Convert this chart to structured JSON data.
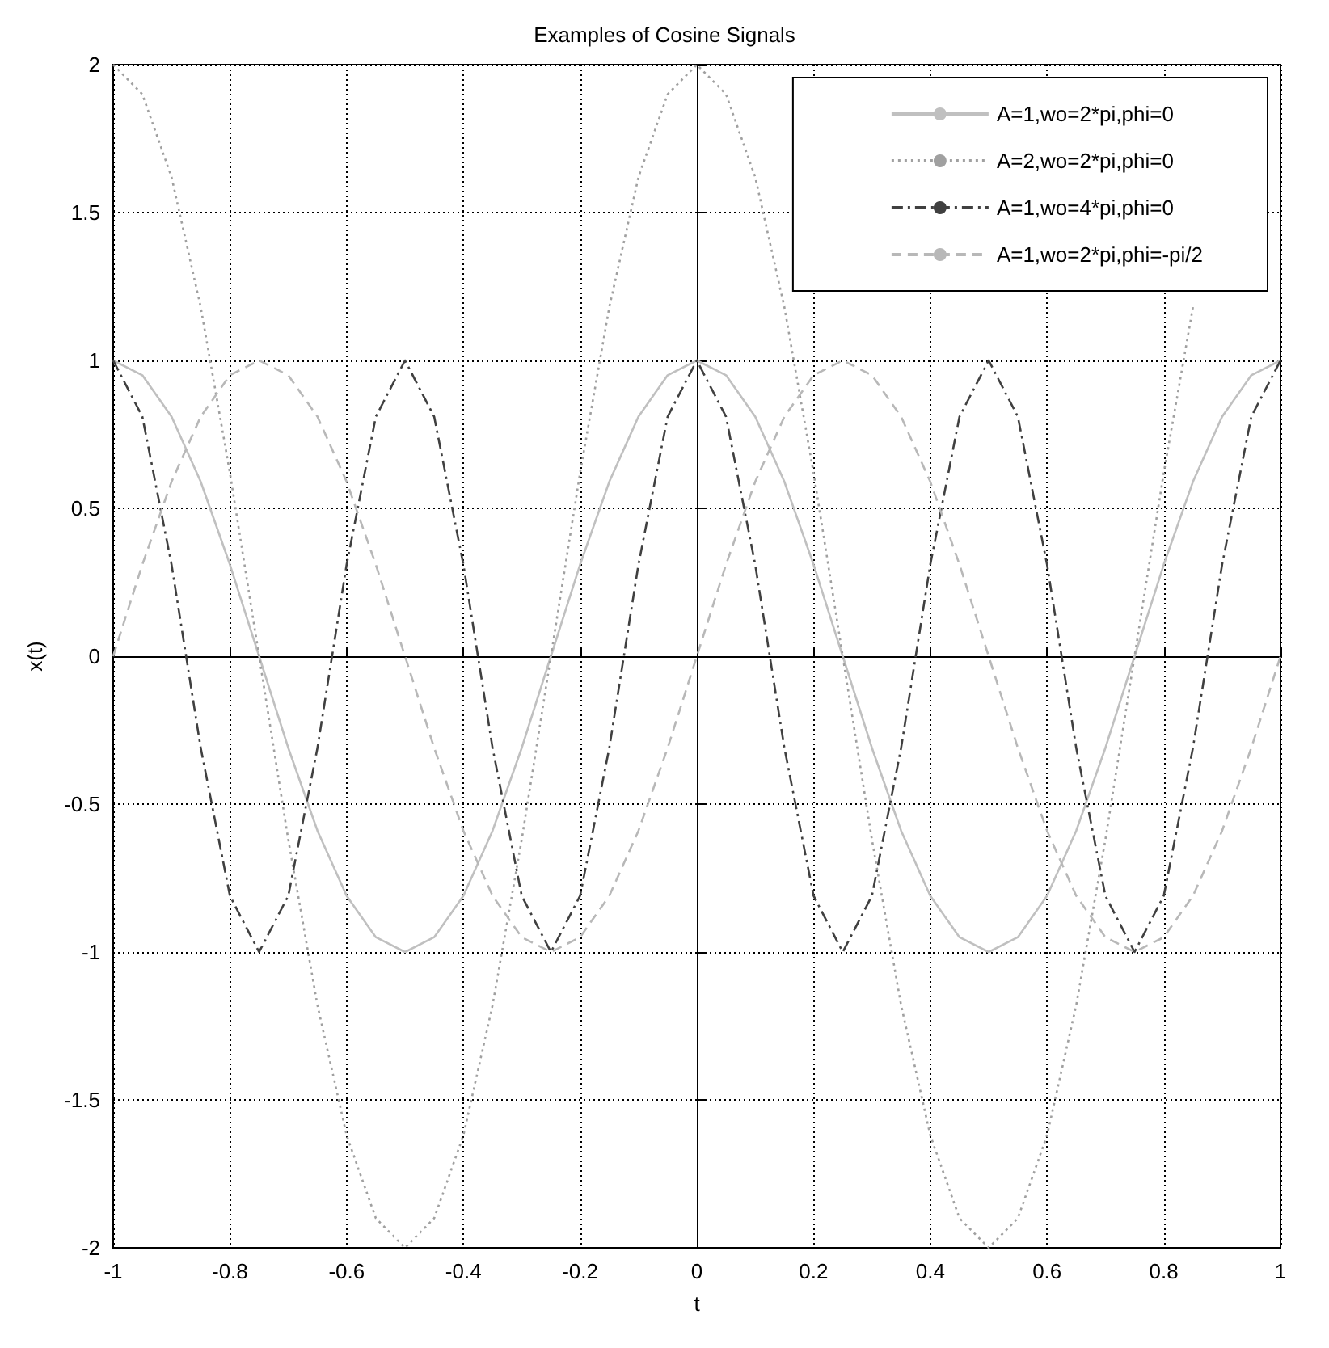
{
  "chart_data": {
    "type": "line",
    "title": "Examples of Cosine Signals",
    "xlabel": "t",
    "ylabel": "x(t)",
    "x": [
      -1,
      -0.95,
      -0.9,
      -0.85,
      -0.8,
      -0.75,
      -0.7,
      -0.65,
      -0.6,
      -0.55,
      -0.5,
      -0.45,
      -0.4,
      -0.35,
      -0.3,
      -0.25,
      -0.2,
      -0.15,
      -0.1,
      -0.05,
      0,
      0.05,
      0.1,
      0.15,
      0.2,
      0.25,
      0.3,
      0.35,
      0.4,
      0.45,
      0.5,
      0.55,
      0.6,
      0.65,
      0.7,
      0.75,
      0.8,
      0.85,
      0.9,
      0.95,
      1
    ],
    "series": [
      {
        "name": "A=1,wo=2*pi,phi=0",
        "color": "#c0c0c0",
        "line_style": "solid",
        "values": [
          1,
          0.95,
          0.81,
          0.59,
          0.31,
          0,
          -0.31,
          -0.59,
          -0.81,
          -0.95,
          -1,
          -0.95,
          -0.81,
          -0.59,
          -0.31,
          0,
          0.31,
          0.59,
          0.81,
          0.95,
          1,
          0.95,
          0.81,
          0.59,
          0.31,
          0,
          -0.31,
          -0.59,
          -0.81,
          -0.95,
          -1,
          -0.95,
          -0.81,
          -0.59,
          -0.31,
          0,
          0.31,
          0.59,
          0.81,
          0.95,
          1
        ]
      },
      {
        "name": "A=2,wo=2*pi,phi=0",
        "color": "#a0a0a0",
        "line_style": "dotted",
        "values": [
          2,
          1.9,
          1.62,
          1.18,
          0.62,
          0,
          -0.62,
          -1.18,
          -1.62,
          -1.9,
          -2,
          -1.9,
          -1.62,
          -1.18,
          -0.62,
          0,
          0.62,
          1.18,
          1.62,
          1.9,
          2,
          1.9,
          1.62,
          1.18,
          0.62,
          0,
          -0.62,
          -1.18,
          -1.62,
          -1.9,
          -2,
          -1.9,
          -1.62,
          -1.18,
          -0.62,
          0,
          0.62,
          1.18,
          null,
          null,
          null
        ]
      },
      {
        "name": "A=1,wo=4*pi,phi=0",
        "color": "#404040",
        "line_style": "dashdot",
        "values": [
          1,
          0.81,
          0.31,
          -0.31,
          -0.81,
          -1,
          -0.81,
          -0.31,
          0.31,
          0.81,
          1,
          0.81,
          0.31,
          -0.31,
          -0.81,
          -1,
          -0.81,
          -0.31,
          0.31,
          0.81,
          1,
          0.81,
          0.31,
          -0.31,
          -0.81,
          -1,
          -0.81,
          -0.31,
          0.31,
          0.81,
          1,
          0.81,
          0.31,
          -0.31,
          -0.81,
          -1,
          -0.81,
          -0.31,
          0.31,
          0.81,
          1
        ]
      },
      {
        "name": "A=1,wo=2*pi,phi=-pi/2",
        "color": "#b8b8b8",
        "line_style": "dashed",
        "values": [
          0,
          0.31,
          0.59,
          0.81,
          0.95,
          1,
          0.95,
          0.81,
          0.59,
          0.31,
          0,
          -0.31,
          -0.59,
          -0.81,
          -0.95,
          -1,
          -0.95,
          -0.81,
          -0.59,
          -0.31,
          0,
          0.31,
          0.59,
          0.81,
          0.95,
          1,
          0.95,
          0.81,
          0.59,
          0.31,
          0,
          -0.31,
          -0.59,
          -0.81,
          -0.95,
          -1,
          -0.95,
          -0.81,
          -0.59,
          -0.31,
          0
        ]
      }
    ],
    "xlim": [
      -1,
      1
    ],
    "xticks": [
      -1,
      -0.8,
      -0.6,
      -0.4,
      -0.2,
      0,
      0.2,
      0.4,
      0.6,
      0.8,
      1
    ],
    "ylim": [
      -2,
      2
    ],
    "yticks": [
      -2,
      -1.5,
      -1,
      -0.5,
      0,
      0.5,
      1,
      1.5,
      2
    ],
    "grid": true,
    "legend": "top right",
    "marker": "none"
  }
}
